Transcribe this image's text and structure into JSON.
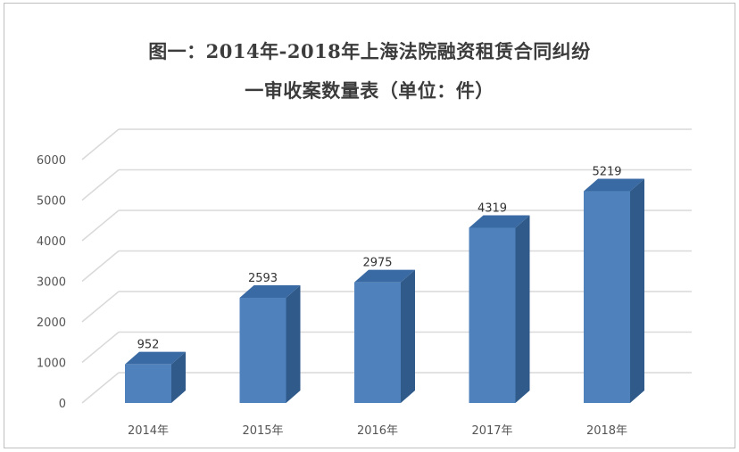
{
  "chart_data": {
    "type": "bar",
    "title_line1": "图一：2014年-2018年上海法院融资租赁合同纠纷",
    "title_line2": "一审收案数量表（单位：件）",
    "xlabel": "",
    "ylabel": "",
    "categories": [
      "2014年",
      "2015年",
      "2016年",
      "2017年",
      "2018年"
    ],
    "values": [
      952,
      2593,
      2975,
      4319,
      5219
    ],
    "data_labels": [
      "952",
      "2593",
      "2975",
      "4319",
      "5219"
    ],
    "y_ticks": [
      "0",
      "1000",
      "2000",
      "3000",
      "4000",
      "5000",
      "6000"
    ],
    "ylim": [
      0,
      6000
    ],
    "grid": true,
    "style": "3d-column",
    "colors": {
      "bar_front": "#4f81bd",
      "bar_side": "#2f5a8a",
      "bar_top": "#3a6aa3",
      "grid": "#d9d9d9"
    }
  }
}
